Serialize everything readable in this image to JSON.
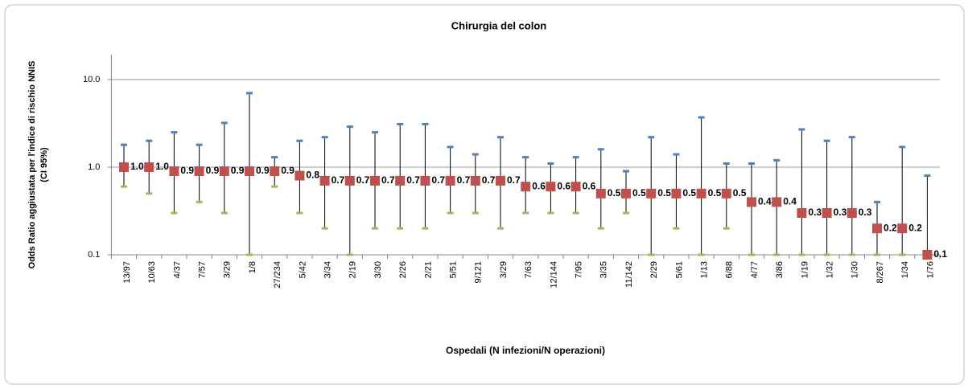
{
  "chart_data": {
    "type": "errorbar",
    "title": "Chirurgia del colon",
    "ylabel": [
      "Odds Ratio aggiustata per l'indice di rischio NNIS",
      "(CI 95%)"
    ],
    "xlabel": "Ospedali (N infezioni/N operazioni)",
    "categories": [
      "13/97",
      "10/63",
      "4/37",
      "7/57",
      "3/29",
      "1/8",
      "27/234",
      "5/42",
      "3/34",
      "2/19",
      "3/30",
      "2/26",
      "2/21",
      "5/51",
      "9/121",
      "3/29",
      "7/63",
      "12/144",
      "7/95",
      "3/35",
      "11/142",
      "2/29",
      "5/61",
      "1/13",
      "6/88",
      "4/77",
      "3/86",
      "1/19",
      "1/32",
      "1/30",
      "8/267",
      "1/34",
      "1/76"
    ],
    "values": [
      1.0,
      1.0,
      0.9,
      0.9,
      0.9,
      0.9,
      0.9,
      0.8,
      0.7,
      0.7,
      0.7,
      0.7,
      0.7,
      0.7,
      0.7,
      0.7,
      0.6,
      0.6,
      0.6,
      0.5,
      0.5,
      0.5,
      0.5,
      0.5,
      0.5,
      0.4,
      0.4,
      0.3,
      0.3,
      0.3,
      0.2,
      0.2,
      0.1
    ],
    "value_labels": [
      "1.0",
      "1.0",
      "0.9",
      "0.9",
      "0.9",
      "0.9",
      "0.9",
      "0.8",
      "0.7",
      "0.7",
      "0.7",
      "0.7",
      "0.7",
      "0.7",
      "0.7",
      "0.7",
      "0.6",
      "0.6",
      "0.6",
      "0.5",
      "0.5",
      "0.5",
      "0.5",
      "0.5",
      "0.5",
      "0.4",
      "0.4",
      "0.3",
      "0.3",
      "0.3",
      "0.2",
      "0.2",
      "0.1"
    ],
    "upper": [
      1.8,
      2.0,
      2.5,
      1.8,
      3.2,
      7.0,
      1.3,
      2.0,
      2.2,
      2.9,
      2.5,
      3.1,
      3.1,
      1.7,
      1.4,
      2.2,
      1.3,
      1.1,
      1.3,
      1.6,
      0.9,
      2.2,
      1.4,
      3.7,
      1.1,
      1.1,
      1.2,
      2.7,
      2.0,
      2.2,
      0.4,
      1.7,
      0.8
    ],
    "lower": [
      0.6,
      0.5,
      0.3,
      0.4,
      0.3,
      0.1,
      0.6,
      0.3,
      0.2,
      0.1,
      0.2,
      0.2,
      0.2,
      0.3,
      0.3,
      0.2,
      0.3,
      0.3,
      0.3,
      0.2,
      0.3,
      0.1,
      0.2,
      0.1,
      0.2,
      0.1,
      0.1,
      0.1,
      0.1,
      0.1,
      0.1,
      0.1,
      0.1
    ],
    "color": "#c0504d",
    "upper_color": "#4f81bd",
    "lower_color": "#9bbb59",
    "log_scale": true,
    "grid": true,
    "ylim": [
      0.1,
      10
    ],
    "yticks": [
      0.1,
      {
        "value": 1,
        "label": "1.0"
      },
      {
        "value": 10,
        "label": "10.0"
      }
    ]
  }
}
